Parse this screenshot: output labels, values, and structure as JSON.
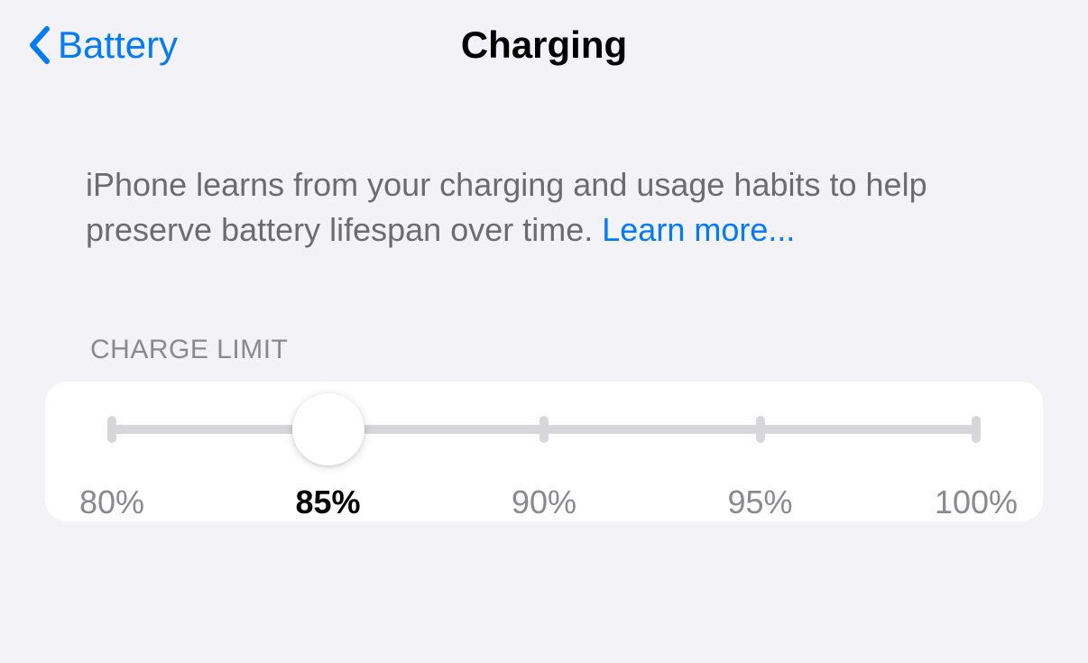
{
  "nav": {
    "back_label": "Battery",
    "title": "Charging"
  },
  "description": {
    "text": "iPhone learns from your charging and usage habits to help preserve battery lifespan over time. ",
    "link_text": "Learn more..."
  },
  "slider": {
    "section_label": "CHARGE LIMIT",
    "stops": [
      "80%",
      "85%",
      "90%",
      "95%",
      "100%"
    ],
    "positions_pct": [
      0,
      25,
      50,
      75,
      100
    ],
    "selected_index": 1,
    "track_color": "#d7d7db",
    "thumb_color": "#ffffff",
    "card_bg": "#ffffff",
    "label_color_inactive": "#8a8a8e",
    "label_color_active": "#000000"
  },
  "colors": {
    "page_bg": "#f2f2f7",
    "accent": "#007aff",
    "text_secondary": "#6c6c70",
    "text_tertiary": "#8a8a8e"
  }
}
